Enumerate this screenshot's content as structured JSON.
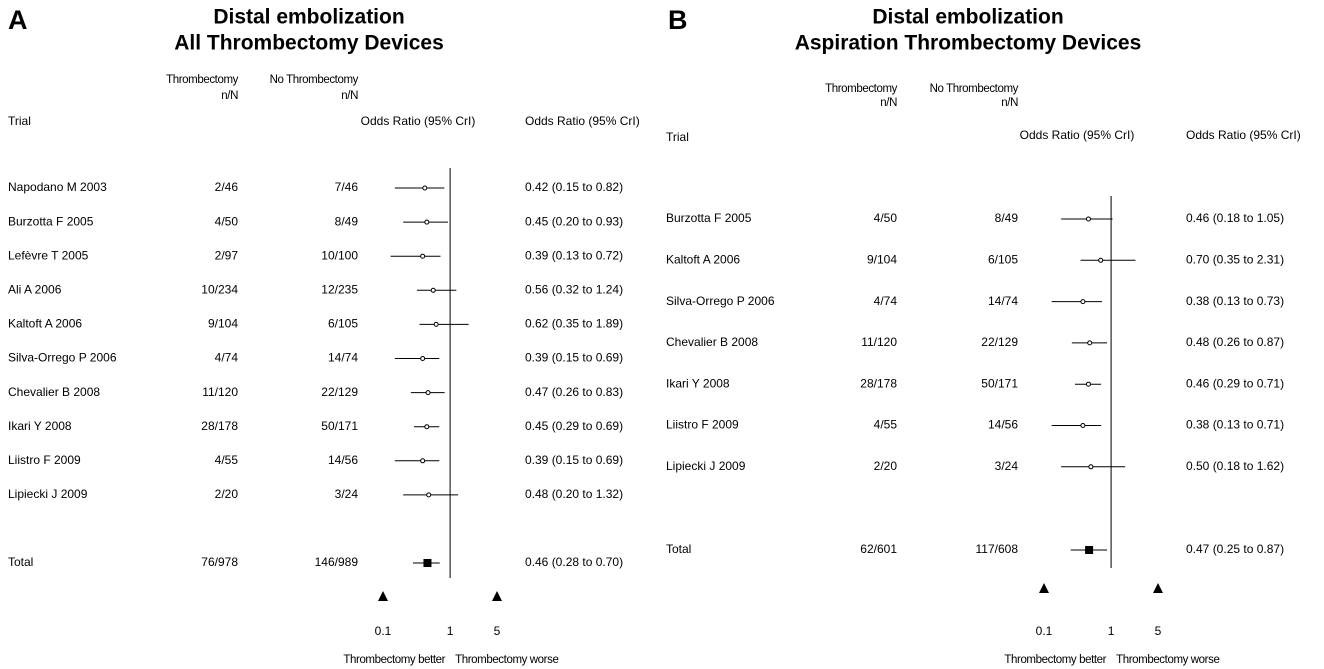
{
  "chart_data": [
    {
      "type": "forest",
      "panel": "A",
      "title": "Distal embolization",
      "subtitle": "All Thrombectomy Devices",
      "columns": {
        "trial": "Trial",
        "treatment": [
          "Thrombectomy",
          "n/N"
        ],
        "control": [
          "No Thrombectomy",
          "n/N"
        ],
        "plot": "Odds Ratio (95% CrI)",
        "estimate": "Odds Ratio (95% CrI)"
      },
      "categories": [
        "Napodano M 2003",
        "Burzotta F 2005",
        "Lefèvre T 2005",
        "Ali A 2006",
        "Kaltoft A 2006",
        "Silva-Orrego P 2006",
        "Chevalier B 2008",
        "Ikari Y 2008",
        "Liistro F 2009",
        "Lipiecki J 2009"
      ],
      "treatment": [
        "2/46",
        "4/50",
        "2/97",
        "10/234",
        "9/104",
        "4/74",
        "11/120",
        "28/178",
        "4/55",
        "2/20"
      ],
      "control": [
        "7/46",
        "8/49",
        "10/100",
        "12/235",
        "6/105",
        "14/74",
        "22/129",
        "50/171",
        "14/56",
        "3/24"
      ],
      "values": [
        0.42,
        0.45,
        0.39,
        0.56,
        0.62,
        0.39,
        0.47,
        0.45,
        0.39,
        0.48
      ],
      "lower": [
        0.15,
        0.2,
        0.13,
        0.32,
        0.35,
        0.15,
        0.26,
        0.29,
        0.15,
        0.2
      ],
      "upper": [
        0.82,
        0.93,
        0.72,
        1.24,
        1.89,
        0.69,
        0.83,
        0.69,
        0.69,
        1.32
      ],
      "value_labels": [
        "0.42 (0.15 to 0.82)",
        "0.45 (0.20 to 0.93)",
        "0.39 (0.13 to 0.72)",
        "0.56 (0.32 to 1.24)",
        "0.62 (0.35 to 1.89)",
        "0.39 (0.15 to 0.69)",
        "0.47 (0.26 to 0.83)",
        "0.45 (0.29 to 0.69)",
        "0.39 (0.15 to 0.69)",
        "0.48 (0.20 to 1.32)"
      ],
      "total": {
        "label": "Total",
        "treatment": "76/978",
        "control": "146/989",
        "value": 0.46,
        "lower": 0.28,
        "upper": 0.7,
        "value_label": "0.46 (0.28 to 0.70)"
      },
      "xscale": "log",
      "xlim": [
        0.1,
        5
      ],
      "xticks": [
        0.1,
        1,
        5
      ],
      "reference_line": 1,
      "x_labels": [
        "Thrombectomy better",
        "Thrombectomy worse"
      ]
    },
    {
      "type": "forest",
      "panel": "B",
      "title": "Distal embolization",
      "subtitle": "Aspiration Thrombectomy Devices",
      "columns": {
        "trial": "Trial",
        "treatment": [
          "Thrombectomy",
          "n/N"
        ],
        "control": [
          "No Thrombectomy",
          "n/N"
        ],
        "plot": "Odds Ratio (95% CrI)",
        "estimate": "Odds Ratio (95% CrI)"
      },
      "categories": [
        "Burzotta F 2005",
        "Kaltoft A 2006",
        "Silva-Orrego P 2006",
        "Chevalier B 2008",
        "Ikari Y 2008",
        "Liistro F 2009",
        "Lipiecki J 2009"
      ],
      "treatment": [
        "4/50",
        "9/104",
        "4/74",
        "11/120",
        "28/178",
        "4/55",
        "2/20"
      ],
      "control": [
        "8/49",
        "6/105",
        "14/74",
        "22/129",
        "50/171",
        "14/56",
        "3/24"
      ],
      "values": [
        0.46,
        0.7,
        0.38,
        0.48,
        0.46,
        0.38,
        0.5
      ],
      "lower": [
        0.18,
        0.35,
        0.13,
        0.26,
        0.29,
        0.13,
        0.18
      ],
      "upper": [
        1.05,
        2.31,
        0.73,
        0.87,
        0.71,
        0.71,
        1.62
      ],
      "value_labels": [
        "0.46 (0.18 to 1.05)",
        "0.70 (0.35 to 2.31)",
        "0.38 (0.13 to 0.73)",
        "0.48 (0.26 to 0.87)",
        "0.46 (0.29 to 0.71)",
        "0.38 (0.13 to 0.71)",
        "0.50 (0.18 to 1.62)"
      ],
      "total": {
        "label": "Total",
        "treatment": "62/601",
        "control": "117/608",
        "value": 0.47,
        "lower": 0.25,
        "upper": 0.87,
        "value_label": "0.47 (0.25 to 0.87)"
      },
      "xscale": "log",
      "xlim": [
        0.1,
        5
      ],
      "xticks": [
        0.1,
        1,
        5
      ],
      "reference_line": 1,
      "x_labels": [
        "Thrombectomy better",
        "Thrombectomy worse"
      ]
    }
  ]
}
